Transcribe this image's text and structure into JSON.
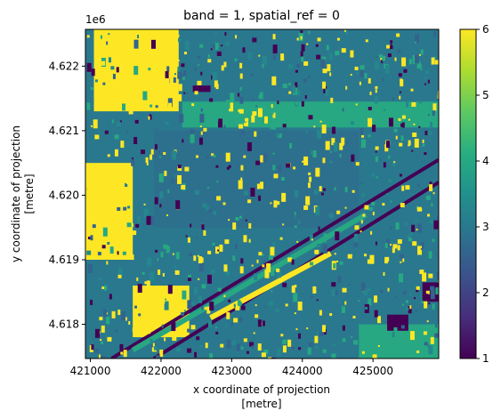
{
  "chart_data": {
    "type": "heatmap",
    "title": "band = 1, spatial_ref = 0",
    "xlabel_line1": "x coordinate of projection",
    "xlabel_line2": "[metre]",
    "ylabel_line1": "y coordinate of projection",
    "ylabel_line2": "[metre]",
    "y_offset_text": "1e6",
    "x_ticks": [
      {
        "value": 421000,
        "label": "421000"
      },
      {
        "value": 422000,
        "label": "422000"
      },
      {
        "value": 423000,
        "label": "423000"
      },
      {
        "value": 424000,
        "label": "424000"
      },
      {
        "value": 425000,
        "label": "425000"
      }
    ],
    "y_ticks": [
      {
        "value": 4617700,
        "label": "4.618"
      },
      {
        "value": 4618700,
        "label": "4.619"
      },
      {
        "value": 4619700,
        "label": "4.620"
      },
      {
        "value": 4620700,
        "label": "4.621"
      },
      {
        "value": 4621700,
        "label": "4.622"
      }
    ],
    "xlim": [
      420930,
      425930
    ],
    "ylim": [
      4617170,
      4622270
    ],
    "colorbar": {
      "colormap": "viridis",
      "vmin": 1,
      "vmax": 6,
      "ticks": [
        {
          "value": 1,
          "label": "1"
        },
        {
          "value": 2,
          "label": "2"
        },
        {
          "value": 3,
          "label": "3"
        },
        {
          "value": 4,
          "label": "4"
        },
        {
          "value": 5,
          "label": "5"
        },
        {
          "value": 6,
          "label": "6"
        }
      ]
    },
    "background_class": 3,
    "regions": [
      {
        "name": "northwest bright area",
        "class": 6,
        "x": [
          421050,
          422250
        ],
        "y": [
          4621000,
          4622270
        ]
      },
      {
        "name": "west bright strip",
        "class": 6,
        "x": [
          420930,
          421600
        ],
        "y": [
          4618700,
          4620200
        ]
      },
      {
        "name": "southwest bright area",
        "class": 6,
        "x": [
          421600,
          422400
        ],
        "y": [
          4617500,
          4618300
        ]
      },
      {
        "name": "upper green band",
        "class": 4,
        "x": [
          422300,
          425930
        ],
        "y": [
          4620750,
          4621150
        ]
      },
      {
        "name": "lower green area",
        "class": 4,
        "x": [
          424800,
          425930
        ],
        "y": [
          4617170,
          4617700
        ]
      },
      {
        "name": "central mottled area",
        "class": 2.7,
        "x": [
          421900,
          424800
        ],
        "y": [
          4619200,
          4620700
        ]
      },
      {
        "name": "dark pond 1",
        "class": 1,
        "x": [
          425200,
          425500
        ],
        "y": [
          4617600,
          4617850
        ]
      },
      {
        "name": "dark pond 2",
        "class": 1,
        "x": [
          425700,
          425930
        ],
        "y": [
          4618050,
          4618350
        ]
      },
      {
        "name": "dark spot",
        "class": 1,
        "x": [
          422450,
          422700
        ],
        "y": [
          4621300,
          4621400
        ]
      }
    ],
    "diagonal_features": [
      {
        "name": "river channel",
        "class": 1,
        "from": [
          421300,
          4617170
        ],
        "to": [
          425930,
          4620250
        ]
      },
      {
        "name": "railway line",
        "class": 1,
        "from": [
          421900,
          4617170
        ],
        "to": [
          425930,
          4619900
        ]
      },
      {
        "name": "bright bank",
        "class": 6,
        "from": [
          422700,
          4617800
        ],
        "to": [
          424400,
          4618800
        ]
      },
      {
        "name": "green bank",
        "class": 4,
        "from": [
          421600,
          4617300
        ],
        "to": [
          424900,
          4619400
        ]
      }
    ]
  }
}
